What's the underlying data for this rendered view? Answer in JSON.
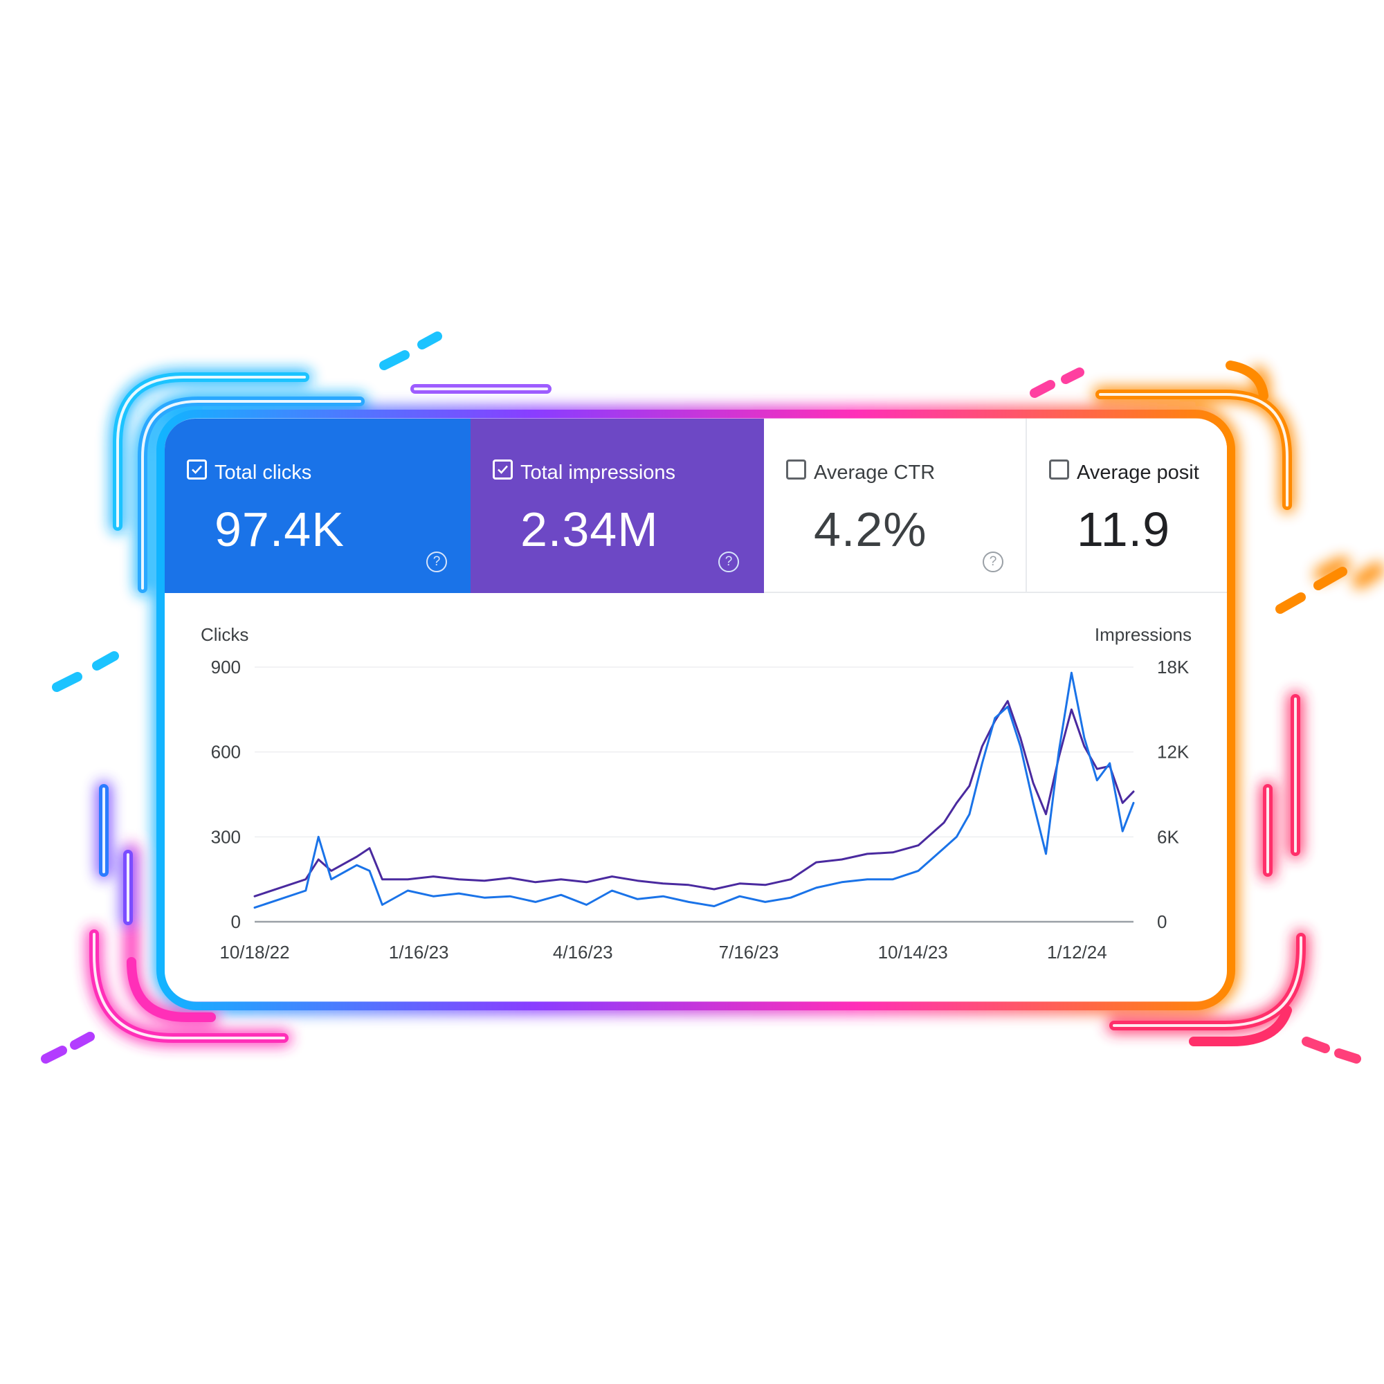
{
  "metrics": [
    {
      "label": "Total clicks",
      "value": "97.4K",
      "checked": true,
      "color": "#1a73e8"
    },
    {
      "label": "Total impressions",
      "value": "2.34M",
      "checked": true,
      "color": "#6d48c5"
    },
    {
      "label": "Average CTR",
      "value": "4.2%",
      "checked": false
    },
    {
      "label": "Average posit",
      "value": "11.9",
      "checked": false
    }
  ],
  "help_icon": "?",
  "chart_data": {
    "type": "line",
    "xlabel": "",
    "ylabel_left": "Clicks",
    "ylabel_right": "Impressions",
    "ylim_left": [
      0,
      900
    ],
    "ylim_right": [
      0,
      18000
    ],
    "yticks_left": [
      "900",
      "600",
      "300",
      "0"
    ],
    "yticks_right": [
      "18K",
      "12K",
      "6K",
      "0"
    ],
    "x_range": [
      "2022-10-18",
      "2024-02-12"
    ],
    "x_ticks": [
      {
        "label": "10/18/22",
        "date": "2022-10-18"
      },
      {
        "label": "1/16/23",
        "date": "2023-01-16"
      },
      {
        "label": "4/16/23",
        "date": "2023-04-16"
      },
      {
        "label": "7/16/23",
        "date": "2023-07-16"
      },
      {
        "label": "10/14/23",
        "date": "2023-10-14"
      },
      {
        "label": "1/12/24",
        "date": "2024-01-12"
      }
    ],
    "grid": true,
    "series": [
      {
        "axis": "left",
        "color": "#1a73e8",
        "points": [
          [
            "2022-10-18",
            50
          ],
          [
            "2022-11-01",
            80
          ],
          [
            "2022-11-15",
            110
          ],
          [
            "2022-11-22",
            300
          ],
          [
            "2022-11-29",
            150
          ],
          [
            "2022-12-13",
            200
          ],
          [
            "2022-12-20",
            180
          ],
          [
            "2022-12-27",
            60
          ],
          [
            "2023-01-10",
            110
          ],
          [
            "2023-01-24",
            90
          ],
          [
            "2023-02-07",
            100
          ],
          [
            "2023-02-21",
            85
          ],
          [
            "2023-03-07",
            90
          ],
          [
            "2023-03-21",
            70
          ],
          [
            "2023-04-04",
            95
          ],
          [
            "2023-04-18",
            60
          ],
          [
            "2023-05-02",
            110
          ],
          [
            "2023-05-16",
            80
          ],
          [
            "2023-05-30",
            90
          ],
          [
            "2023-06-13",
            70
          ],
          [
            "2023-06-27",
            55
          ],
          [
            "2023-07-11",
            90
          ],
          [
            "2023-07-25",
            70
          ],
          [
            "2023-08-08",
            85
          ],
          [
            "2023-08-22",
            120
          ],
          [
            "2023-09-05",
            140
          ],
          [
            "2023-09-19",
            150
          ],
          [
            "2023-10-03",
            150
          ],
          [
            "2023-10-17",
            180
          ],
          [
            "2023-10-31",
            260
          ],
          [
            "2023-11-07",
            300
          ],
          [
            "2023-11-14",
            380
          ],
          [
            "2023-11-21",
            560
          ],
          [
            "2023-11-28",
            720
          ],
          [
            "2023-12-05",
            760
          ],
          [
            "2023-12-12",
            620
          ],
          [
            "2023-12-19",
            420
          ],
          [
            "2023-12-26",
            240
          ],
          [
            "2024-01-02",
            600
          ],
          [
            "2024-01-09",
            880
          ],
          [
            "2024-01-16",
            650
          ],
          [
            "2024-01-23",
            500
          ],
          [
            "2024-01-30",
            560
          ],
          [
            "2024-02-06",
            320
          ],
          [
            "2024-02-12",
            420
          ]
        ]
      },
      {
        "axis": "right",
        "color": "#4a2a9f",
        "points": [
          [
            "2022-10-18",
            1800
          ],
          [
            "2022-11-01",
            2400
          ],
          [
            "2022-11-15",
            3000
          ],
          [
            "2022-11-22",
            4400
          ],
          [
            "2022-11-29",
            3600
          ],
          [
            "2022-12-13",
            4600
          ],
          [
            "2022-12-20",
            5200
          ],
          [
            "2022-12-27",
            3000
          ],
          [
            "2023-01-10",
            3000
          ],
          [
            "2023-01-24",
            3200
          ],
          [
            "2023-02-07",
            3000
          ],
          [
            "2023-02-21",
            2900
          ],
          [
            "2023-03-07",
            3100
          ],
          [
            "2023-03-21",
            2800
          ],
          [
            "2023-04-04",
            3000
          ],
          [
            "2023-04-18",
            2800
          ],
          [
            "2023-05-02",
            3200
          ],
          [
            "2023-05-16",
            2900
          ],
          [
            "2023-05-30",
            2700
          ],
          [
            "2023-06-13",
            2600
          ],
          [
            "2023-06-27",
            2300
          ],
          [
            "2023-07-11",
            2700
          ],
          [
            "2023-07-25",
            2600
          ],
          [
            "2023-08-08",
            3000
          ],
          [
            "2023-08-22",
            4200
          ],
          [
            "2023-09-05",
            4400
          ],
          [
            "2023-09-19",
            4800
          ],
          [
            "2023-10-03",
            4900
          ],
          [
            "2023-10-17",
            5400
          ],
          [
            "2023-10-31",
            7000
          ],
          [
            "2023-11-07",
            8400
          ],
          [
            "2023-11-14",
            9600
          ],
          [
            "2023-11-21",
            12400
          ],
          [
            "2023-11-28",
            14200
          ],
          [
            "2023-12-05",
            15600
          ],
          [
            "2023-12-12",
            13000
          ],
          [
            "2023-12-19",
            9800
          ],
          [
            "2023-12-26",
            7600
          ],
          [
            "2024-01-02",
            11600
          ],
          [
            "2024-01-09",
            15000
          ],
          [
            "2024-01-16",
            12400
          ],
          [
            "2024-01-23",
            10800
          ],
          [
            "2024-01-30",
            11000
          ],
          [
            "2024-02-06",
            8400
          ],
          [
            "2024-02-12",
            9200
          ]
        ]
      }
    ]
  }
}
